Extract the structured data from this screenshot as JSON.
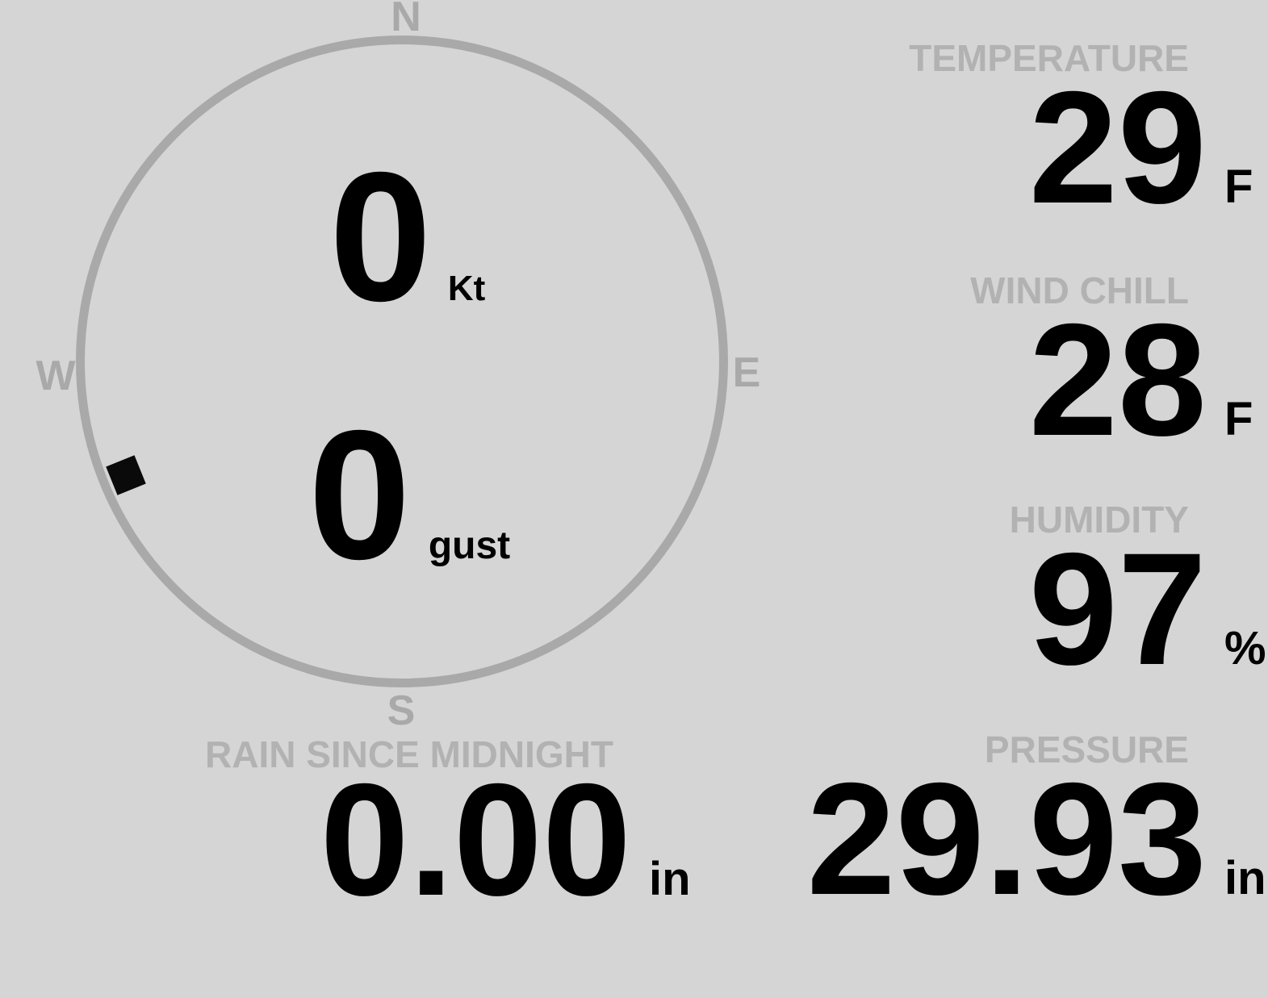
{
  "theme": {
    "background": "#d5d5d5",
    "ring_gray": "#a9a9a9",
    "label_gray": "#b2b2b2",
    "value_black": "#000000"
  },
  "compass": {
    "cardinals": {
      "north": "N",
      "east": "E",
      "south": "S",
      "west": "W"
    },
    "wind_speed": {
      "value": "0",
      "unit": "Kt"
    },
    "wind_gust": {
      "value": "0",
      "unit": "gust"
    },
    "direction_marker": {
      "bearing_deg": 248
    }
  },
  "stats": {
    "temperature": {
      "label": "TEMPERATURE",
      "value": "29",
      "unit": "F"
    },
    "wind_chill": {
      "label": "WIND CHILL",
      "value": "28",
      "unit": "F"
    },
    "humidity": {
      "label": "HUMIDITY",
      "value": "97",
      "unit": "%"
    },
    "rain_since_midnight": {
      "label": "RAIN SINCE MIDNIGHT",
      "value": "0.00",
      "unit": "in"
    },
    "pressure": {
      "label": "PRESSURE",
      "value": "29.93",
      "unit": "in"
    }
  }
}
